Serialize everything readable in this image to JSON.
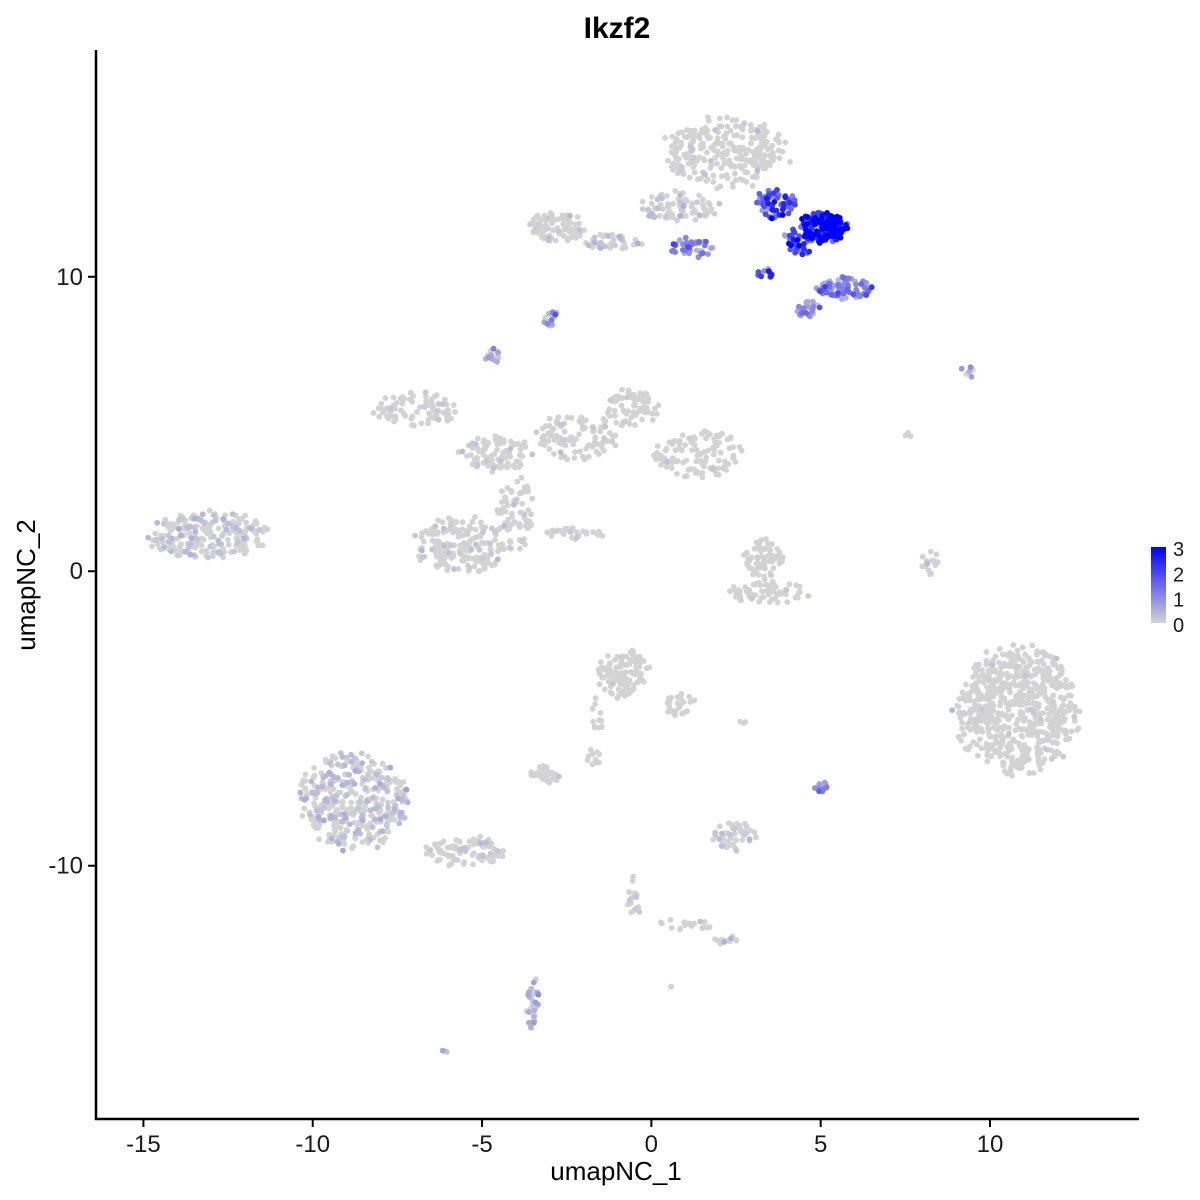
{
  "chart_data": {
    "type": "scatter",
    "title": "Ikzf2",
    "xlabel": "umapNC_1",
    "ylabel": "umapNC_2",
    "xlim": [
      -16.4,
      14.4
    ],
    "ylim": [
      -18.6,
      17.7
    ],
    "x_ticks": [
      -15,
      -10,
      -5,
      0,
      5,
      10
    ],
    "x_tick_labels": [
      "-15",
      "-10",
      "-5",
      "0",
      "5",
      "10"
    ],
    "y_ticks": [
      -10,
      0,
      10
    ],
    "y_tick_labels": [
      "-10",
      "0",
      "10"
    ],
    "grid": false,
    "legend": {
      "placement": "right",
      "labels": [
        "3",
        "2",
        "1",
        "0"
      ],
      "values": [
        3,
        2,
        1,
        0
      ],
      "color_low": "#d3d3d3",
      "color_high": "#0000ff"
    },
    "clusters": [
      {
        "cx": 2.2,
        "cy": 14.2,
        "rx": 1.8,
        "ry": 1.2,
        "n": 260,
        "expr": 0.05
      },
      {
        "cx": 0.8,
        "cy": 12.4,
        "rx": 1.2,
        "ry": 0.5,
        "n": 80,
        "expr": 0.2
      },
      {
        "cx": -2.8,
        "cy": 11.7,
        "rx": 0.8,
        "ry": 0.5,
        "n": 90,
        "expr": 0.05
      },
      {
        "cx": -1.2,
        "cy": 11.2,
        "rx": 0.9,
        "ry": 0.3,
        "n": 40,
        "expr": 0.3
      },
      {
        "cx": 1.2,
        "cy": 11.0,
        "rx": 0.6,
        "ry": 0.35,
        "n": 40,
        "expr": 1.0
      },
      {
        "cx": 3.7,
        "cy": 12.5,
        "rx": 0.6,
        "ry": 0.6,
        "n": 60,
        "expr": 1.6
      },
      {
        "cx": 5.1,
        "cy": 11.7,
        "rx": 0.7,
        "ry": 0.55,
        "n": 160,
        "expr": 2.6
      },
      {
        "cx": 4.4,
        "cy": 11.2,
        "rx": 0.5,
        "ry": 0.5,
        "n": 50,
        "expr": 1.8
      },
      {
        "cx": 5.7,
        "cy": 9.6,
        "rx": 0.8,
        "ry": 0.4,
        "n": 90,
        "expr": 1.0
      },
      {
        "cx": 4.6,
        "cy": 8.9,
        "rx": 0.4,
        "ry": 0.3,
        "n": 25,
        "expr": 0.9
      },
      {
        "cx": 3.3,
        "cy": 10.1,
        "rx": 0.3,
        "ry": 0.2,
        "n": 12,
        "expr": 1.5
      },
      {
        "cx": -3.0,
        "cy": 8.6,
        "rx": 0.25,
        "ry": 0.3,
        "n": 15,
        "expr": 0.8
      },
      {
        "cx": -4.7,
        "cy": 7.3,
        "rx": 0.25,
        "ry": 0.25,
        "n": 15,
        "expr": 0.6
      },
      {
        "cx": -7.0,
        "cy": 5.5,
        "rx": 1.2,
        "ry": 0.6,
        "n": 80,
        "expr": 0.05
      },
      {
        "cx": -4.6,
        "cy": 4.0,
        "rx": 1.0,
        "ry": 0.6,
        "n": 90,
        "expr": 0.08
      },
      {
        "cx": -2.2,
        "cy": 4.6,
        "rx": 1.2,
        "ry": 0.8,
        "n": 100,
        "expr": 0.05
      },
      {
        "cx": -0.6,
        "cy": 5.5,
        "rx": 0.8,
        "ry": 0.7,
        "n": 70,
        "expr": 0.04
      },
      {
        "cx": 1.4,
        "cy": 4.0,
        "rx": 1.3,
        "ry": 0.8,
        "n": 110,
        "expr": 0.03
      },
      {
        "cx": -4.0,
        "cy": 2.0,
        "rx": 0.6,
        "ry": 1.2,
        "n": 70,
        "expr": 0.1
      },
      {
        "cx": -5.6,
        "cy": 0.9,
        "rx": 1.4,
        "ry": 1.0,
        "n": 180,
        "expr": 0.12
      },
      {
        "cx": -2.3,
        "cy": 1.3,
        "rx": 0.9,
        "ry": 0.2,
        "n": 30,
        "expr": 0.02
      },
      {
        "cx": -13.1,
        "cy": 1.2,
        "rx": 1.7,
        "ry": 0.8,
        "n": 230,
        "expr": 0.25
      },
      {
        "cx": 3.3,
        "cy": 0.4,
        "rx": 0.6,
        "ry": 0.7,
        "n": 60,
        "expr": 0.03
      },
      {
        "cx": 3.4,
        "cy": -0.7,
        "rx": 1.2,
        "ry": 0.4,
        "n": 60,
        "expr": 0.03
      },
      {
        "cx": 8.2,
        "cy": 0.4,
        "rx": 0.25,
        "ry": 0.6,
        "n": 15,
        "expr": 0.15
      },
      {
        "cx": 10.8,
        "cy": -4.7,
        "rx": 1.8,
        "ry": 2.1,
        "n": 650,
        "expr": 0.01
      },
      {
        "cx": -0.8,
        "cy": -3.5,
        "rx": 0.8,
        "ry": 0.8,
        "n": 110,
        "expr": 0.03
      },
      {
        "cx": 0.9,
        "cy": -4.6,
        "rx": 0.5,
        "ry": 0.5,
        "n": 25,
        "expr": 0.02
      },
      {
        "cx": -1.6,
        "cy": -4.9,
        "rx": 0.2,
        "ry": 0.6,
        "n": 12,
        "expr": 0.02
      },
      {
        "cx": -1.7,
        "cy": -6.3,
        "rx": 0.2,
        "ry": 0.4,
        "n": 10,
        "expr": 0.02
      },
      {
        "cx": -3.1,
        "cy": -6.9,
        "rx": 0.5,
        "ry": 0.3,
        "n": 35,
        "expr": 0.02
      },
      {
        "cx": 5.0,
        "cy": -7.3,
        "rx": 0.2,
        "ry": 0.2,
        "n": 12,
        "expr": 0.9
      },
      {
        "cx": -8.8,
        "cy": -7.8,
        "rx": 1.6,
        "ry": 1.6,
        "n": 380,
        "expr": 0.3
      },
      {
        "cx": -5.5,
        "cy": -9.5,
        "rx": 1.2,
        "ry": 0.5,
        "n": 90,
        "expr": 0.15
      },
      {
        "cx": 2.4,
        "cy": -9.0,
        "rx": 0.7,
        "ry": 0.5,
        "n": 50,
        "expr": 0.2
      },
      {
        "cx": -0.5,
        "cy": -11.0,
        "rx": 0.2,
        "ry": 0.8,
        "n": 18,
        "expr": 0.15
      },
      {
        "cx": 1.0,
        "cy": -12.0,
        "rx": 0.8,
        "ry": 0.2,
        "n": 18,
        "expr": 0.05
      },
      {
        "cx": 2.2,
        "cy": -12.5,
        "rx": 0.35,
        "ry": 0.2,
        "n": 14,
        "expr": 0.2
      },
      {
        "cx": -3.5,
        "cy": -14.6,
        "rx": 0.2,
        "ry": 0.9,
        "n": 30,
        "expr": 0.5
      },
      {
        "cx": -6.1,
        "cy": -16.3,
        "rx": 0.08,
        "ry": 0.08,
        "n": 3,
        "expr": 0.4
      },
      {
        "cx": 9.4,
        "cy": 6.8,
        "rx": 0.35,
        "ry": 0.2,
        "n": 6,
        "expr": 0.6
      },
      {
        "cx": 7.6,
        "cy": 4.7,
        "rx": 0.1,
        "ry": 0.2,
        "n": 3,
        "expr": 0.05
      },
      {
        "cx": 2.7,
        "cy": -5.1,
        "rx": 0.1,
        "ry": 0.05,
        "n": 3,
        "expr": 0.02
      },
      {
        "cx": 0.6,
        "cy": -14.1,
        "rx": 0.08,
        "ry": 0.08,
        "n": 2,
        "expr": 0.02
      }
    ]
  }
}
